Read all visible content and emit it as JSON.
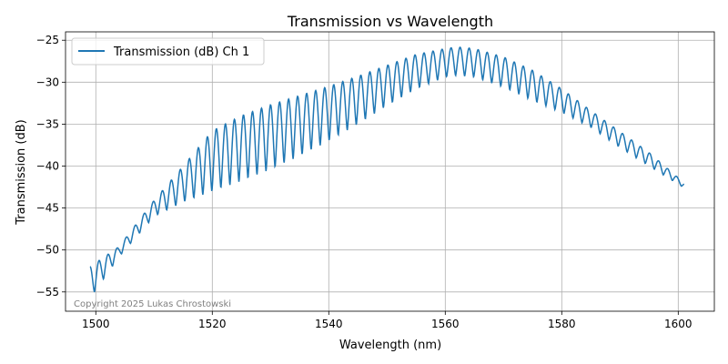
{
  "chart_data": {
    "type": "line",
    "title": "Transmission vs Wavelength",
    "xlabel": "Wavelength (nm)",
    "ylabel": "Transmission (dB)",
    "xlim": [
      1494.8,
      1606.2
    ],
    "ylim": [
      -57.3,
      -24.0
    ],
    "x_ticks": [
      1500,
      1520,
      1540,
      1560,
      1580,
      1600
    ],
    "x_tick_labels": [
      "1500",
      "1520",
      "1540",
      "1560",
      "1580",
      "1600"
    ],
    "y_ticks": [
      -55,
      -50,
      -45,
      -40,
      -35,
      -30,
      -25
    ],
    "y_tick_labels": [
      "−55",
      "−50",
      "−45",
      "−40",
      "−35",
      "−30",
      "−25"
    ],
    "grid": true,
    "legend_position": "top-left",
    "series": [
      {
        "name": "Transmission (dB) Ch 1",
        "color": "#1f77b4",
        "x_start": 1499.0,
        "x_end": 1601.0,
        "fringe_period_nm": 1.55,
        "upper_envelope": {
          "x": [
            1499,
            1504,
            1510,
            1515,
            1520,
            1525,
            1530,
            1535,
            1540,
            1545,
            1550,
            1555,
            1560,
            1562,
            1565,
            1570,
            1575,
            1580,
            1585,
            1590,
            1595,
            1601
          ],
          "y": [
            -52.0,
            -49.6,
            -44.1,
            -40.0,
            -35.8,
            -34.0,
            -32.7,
            -31.6,
            -30.5,
            -29.3,
            -28.0,
            -26.7,
            -26.0,
            -25.8,
            -26.0,
            -27.0,
            -28.6,
            -30.8,
            -33.4,
            -35.9,
            -38.4,
            -42.0
          ]
        },
        "lower_envelope": {
          "x": [
            1499,
            1504,
            1510,
            1515,
            1520,
            1525,
            1530,
            1535,
            1540,
            1545,
            1550,
            1555,
            1560,
            1562,
            1565,
            1570,
            1575,
            1580,
            1585,
            1590,
            1595,
            1601
          ],
          "y": [
            -55.8,
            -50.8,
            -46.0,
            -44.3,
            -43.0,
            -41.8,
            -40.4,
            -38.8,
            -37.0,
            -35.0,
            -32.8,
            -30.8,
            -29.4,
            -29.2,
            -29.4,
            -30.6,
            -32.2,
            -33.6,
            -35.4,
            -37.8,
            -40.0,
            -42.6
          ]
        }
      }
    ],
    "annotation": "Copyright 2025 Lukas Chrostowski"
  }
}
